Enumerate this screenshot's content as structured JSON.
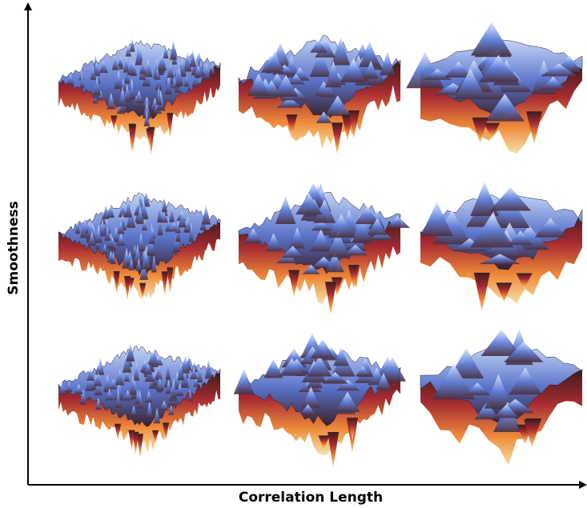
{
  "y_axis_label": "Smoothness",
  "x_axis_label": "Correlation Length"
}
